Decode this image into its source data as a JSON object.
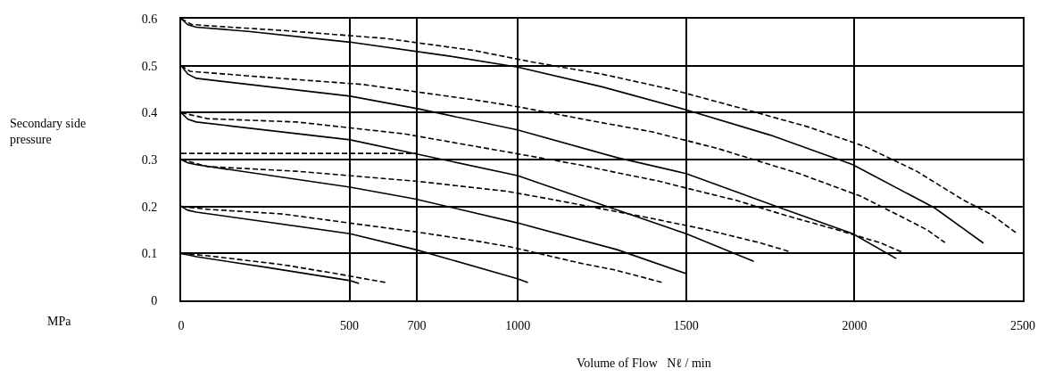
{
  "chart_data": {
    "type": "line",
    "xlabel": "Volume of Flow   Nℓ / min",
    "ylabel": "Secondary side\npressure",
    "annotations": [
      "MPa"
    ],
    "xlim": [
      0,
      2500
    ],
    "xticks": [
      0,
      500,
      700,
      1000,
      1500,
      2000,
      2500
    ],
    "ylim": [
      0,
      0.6
    ],
    "yticks": [
      0,
      0.1,
      0.2,
      0.3,
      0.4,
      0.5,
      0.6
    ],
    "grid": true,
    "marker": "none",
    "series": [
      {
        "color": "#000000",
        "line_style": "solid",
        "x": [
          0,
          20,
          45,
          200,
          502,
          800,
          999,
          1250,
          1500,
          1750,
          1995,
          2238,
          2383
        ],
        "values": [
          0.6,
          0.587,
          0.582,
          0.573,
          0.55,
          0.52,
          0.497,
          0.455,
          0.406,
          0.352,
          0.289,
          0.197,
          0.122
        ]
      },
      {
        "color": "#000000",
        "line_style": "dashed",
        "x": [
          0,
          30,
          80,
          300,
          608,
          872,
          1049,
          1250,
          1453,
          1649,
          1860,
          2034,
          2185,
          2325,
          2404,
          2484
        ],
        "values": [
          0.6,
          0.588,
          0.585,
          0.575,
          0.558,
          0.532,
          0.507,
          0.482,
          0.45,
          0.412,
          0.37,
          0.327,
          0.275,
          0.213,
          0.184,
          0.142
        ]
      },
      {
        "color": "#000000",
        "line_style": "solid",
        "x": [
          0,
          20,
          45,
          502,
          705,
          999,
          1295,
          1500,
          1780,
          1995,
          2124
        ],
        "values": [
          0.5,
          0.482,
          0.473,
          0.435,
          0.408,
          0.363,
          0.304,
          0.27,
          0.197,
          0.142,
          0.089
        ]
      },
      {
        "color": "#000000",
        "line_style": "dashed",
        "x": [
          0,
          26,
          256,
          539,
          872,
          1004,
          1215,
          1400,
          1596,
          1836,
          2018,
          2140,
          2216,
          2269
        ],
        "values": [
          0.5,
          0.488,
          0.475,
          0.46,
          0.427,
          0.412,
          0.383,
          0.359,
          0.323,
          0.27,
          0.222,
          0.178,
          0.15,
          0.123
        ]
      },
      {
        "color": "#000000",
        "line_style": "solid",
        "x": [
          0,
          20,
          45,
          502,
          705,
          999,
          1252,
          1500,
          1701
        ],
        "values": [
          0.4,
          0.386,
          0.38,
          0.342,
          0.311,
          0.266,
          0.203,
          0.142,
          0.083
        ]
      },
      {
        "color": "#000000",
        "line_style": "dashed",
        "x": [
          0,
          79,
          343,
          660,
          962,
          1181,
          1308,
          1419,
          1524,
          1649,
          1800,
          1950,
          2079,
          2140
        ],
        "values": [
          0.4,
          0.387,
          0.38,
          0.355,
          0.317,
          0.289,
          0.27,
          0.254,
          0.235,
          0.213,
          0.18,
          0.15,
          0.122,
          0.103
        ]
      },
      {
        "color": "#000000",
        "line_style": "solid",
        "x": [
          0,
          20,
          45,
          502,
          695,
          999,
          1295,
          1500
        ],
        "values": [
          0.3,
          0.293,
          0.289,
          0.241,
          0.216,
          0.165,
          0.108,
          0.057
        ]
      },
      {
        "color": "#000000",
        "line_style": "dashed",
        "x": [
          0,
          79,
          343,
          697,
          970,
          1094,
          1374,
          1551,
          1717,
          1807
        ],
        "values": [
          0.3,
          0.285,
          0.275,
          0.254,
          0.232,
          0.216,
          0.178,
          0.152,
          0.123,
          0.104
        ]
      },
      {
        "color": "#000000",
        "line_style": "solid",
        "x": [
          0,
          20,
          45,
          502,
          697,
          999,
          1030
        ],
        "values": [
          0.2,
          0.192,
          0.188,
          0.142,
          0.108,
          0.046,
          0.038
        ]
      },
      {
        "color": "#000000",
        "line_style": "dashed",
        "x": [
          0,
          79,
          301,
          539,
          697,
          872,
          978,
          1181,
          1287,
          1430
        ],
        "values": [
          0.2,
          0.194,
          0.184,
          0.161,
          0.146,
          0.127,
          0.114,
          0.08,
          0.065,
          0.038
        ]
      },
      {
        "color": "#000000",
        "line_style": "solid",
        "x": [
          0,
          20,
          45,
          256,
          502,
          528
        ],
        "values": [
          0.1,
          0.097,
          0.093,
          0.07,
          0.042,
          0.036
        ]
      },
      {
        "color": "#000000",
        "line_style": "dashed",
        "x": [
          0,
          79,
          301,
          460,
          608
        ],
        "values": [
          0.1,
          0.095,
          0.076,
          0.057,
          0.038
        ]
      },
      {
        "color": "#000000",
        "line_style": "dashed",
        "x": [
          0,
          700,
          700
        ],
        "values": [
          0.313,
          0.313,
          0
        ]
      }
    ]
  }
}
